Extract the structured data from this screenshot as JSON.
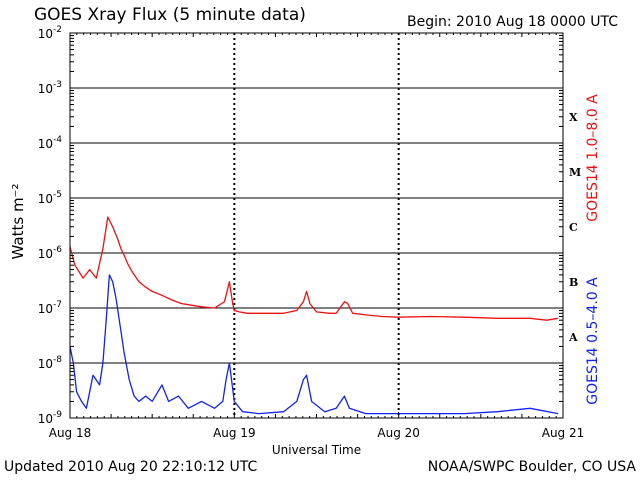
{
  "header": {
    "title": "GOES Xray Flux (5 minute data)",
    "begin": "Begin:  2010 Aug 18 0000 UTC"
  },
  "footer": {
    "updated": "Updated 2010 Aug 20 22:10:12 UTC",
    "credit": "NOAA/SWPC Boulder, CO USA"
  },
  "colors": {
    "long": "#ee1111",
    "short": "#1122ee",
    "axis": "#000000",
    "background": "#ffffff"
  },
  "chart_data": {
    "type": "line",
    "title": "GOES Xray Flux (5 minute data)",
    "xlabel": "Universal Time",
    "ylabel": "Watts m⁻²",
    "yscale": "log",
    "ylim": [
      1e-09,
      0.01
    ],
    "xlim": [
      "2010-08-18 00:00",
      "2010-08-21 00:00"
    ],
    "x_ticks": [
      "Aug 18",
      "Aug 19",
      "Aug 20",
      "Aug 21"
    ],
    "y_ticks": [
      {
        "value": 0.01,
        "base": "10",
        "exp": "-2"
      },
      {
        "value": 0.001,
        "base": "10",
        "exp": "-3"
      },
      {
        "value": 0.0001,
        "base": "10",
        "exp": "-4"
      },
      {
        "value": 1e-05,
        "base": "10",
        "exp": "-5"
      },
      {
        "value": 1e-06,
        "base": "10",
        "exp": "-6"
      },
      {
        "value": 1e-07,
        "base": "10",
        "exp": "-7"
      },
      {
        "value": 1e-08,
        "base": "10",
        "exp": "-8"
      },
      {
        "value": 1e-09,
        "base": "10",
        "exp": "-9"
      }
    ],
    "flare_classes": [
      {
        "label": "X",
        "value": 0.0003
      },
      {
        "label": "M",
        "value": 3e-05
      },
      {
        "label": "C",
        "value": 3e-06
      },
      {
        "label": "B",
        "value": 3e-07
      },
      {
        "label": "A",
        "value": 3e-08
      }
    ],
    "grid": true,
    "series": [
      {
        "name": "GOES14 1.0–8.0 A",
        "color": "#ee1111",
        "x": [
          0,
          0.03,
          0.08,
          0.12,
          0.16,
          0.2,
          0.23,
          0.26,
          0.29,
          0.31,
          0.33,
          0.35,
          0.38,
          0.42,
          0.46,
          0.5,
          0.56,
          0.62,
          0.68,
          0.72,
          0.8,
          0.88,
          0.94,
          0.97,
          0.99,
          1.0,
          1.03,
          1.08,
          1.2,
          1.3,
          1.38,
          1.42,
          1.44,
          1.46,
          1.5,
          1.58,
          1.62,
          1.67,
          1.69,
          1.72,
          1.8,
          1.9,
          2.0,
          2.2,
          2.4,
          2.6,
          2.8,
          2.9,
          2.97
        ],
        "y": [
          1.3e-06,
          6e-07,
          3.5e-07,
          5e-07,
          3.5e-07,
          1.2e-06,
          4.5e-06,
          3e-06,
          1.8e-06,
          1.2e-06,
          9e-07,
          6.5e-07,
          4.5e-07,
          3e-07,
          2.4e-07,
          2e-07,
          1.7e-07,
          1.4e-07,
          1.2e-07,
          1.15e-07,
          1.05e-07,
          1e-07,
          1.3e-07,
          3e-07,
          1.2e-07,
          9e-08,
          8.5e-08,
          8e-08,
          8e-08,
          8e-08,
          9e-08,
          1.3e-07,
          2e-07,
          1.2e-07,
          8.5e-08,
          8e-08,
          8e-08,
          1.3e-07,
          1.2e-07,
          8e-08,
          7.5e-08,
          7e-08,
          6.8e-08,
          7e-08,
          6.8e-08,
          6.5e-08,
          6.5e-08,
          6e-08,
          6.5e-08
        ]
      },
      {
        "name": "GOES14 0.5–4.0 A",
        "color": "#1122ee",
        "x": [
          0,
          0.02,
          0.04,
          0.07,
          0.1,
          0.14,
          0.18,
          0.2,
          0.22,
          0.24,
          0.26,
          0.28,
          0.3,
          0.33,
          0.36,
          0.39,
          0.42,
          0.46,
          0.5,
          0.56,
          0.6,
          0.66,
          0.72,
          0.8,
          0.88,
          0.93,
          0.95,
          0.97,
          1.0,
          1.05,
          1.15,
          1.3,
          1.38,
          1.42,
          1.44,
          1.47,
          1.55,
          1.62,
          1.67,
          1.7,
          1.8,
          2.0,
          2.2,
          2.4,
          2.6,
          2.8,
          2.97
        ],
        "y": [
          2e-08,
          1e-08,
          3e-09,
          2e-09,
          1.5e-09,
          6e-09,
          4e-09,
          1e-08,
          6e-08,
          4e-07,
          3e-07,
          1.5e-07,
          6e-08,
          1.5e-08,
          5e-09,
          2.5e-09,
          2e-09,
          2.5e-09,
          2e-09,
          4e-09,
          2e-09,
          2.5e-09,
          1.5e-09,
          2e-09,
          1.5e-09,
          2e-09,
          5e-09,
          1e-08,
          2e-09,
          1.3e-09,
          1.2e-09,
          1.3e-09,
          2e-09,
          5e-09,
          6e-09,
          2e-09,
          1.3e-09,
          1.5e-09,
          2.5e-09,
          1.5e-09,
          1.2e-09,
          1.2e-09,
          1.2e-09,
          1.2e-09,
          1.3e-09,
          1.5e-09,
          1.2e-09
        ]
      }
    ]
  }
}
